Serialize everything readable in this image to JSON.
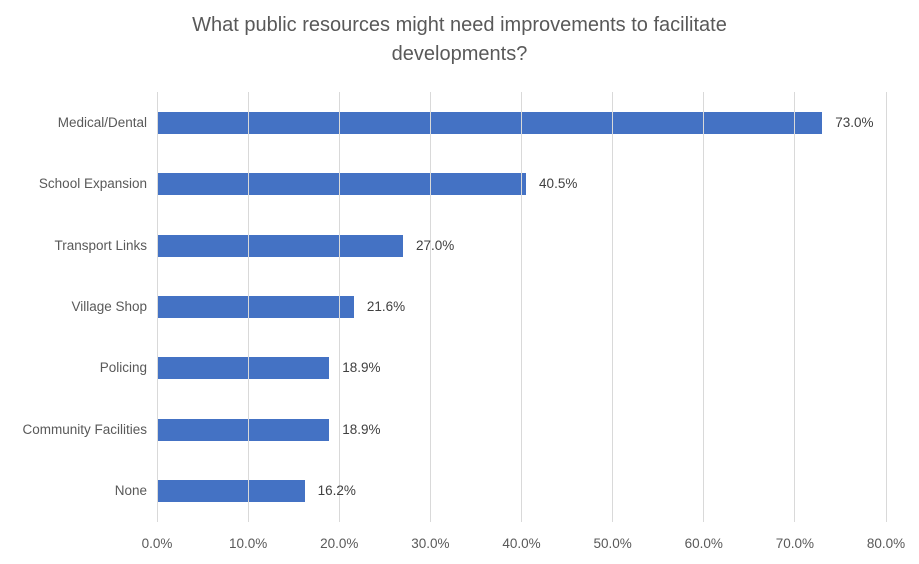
{
  "chart_data": {
    "type": "bar",
    "orientation": "horizontal",
    "title": "What public resources might need improvements to facilitate developments?",
    "categories": [
      "Medical/Dental",
      "School Expansion",
      "Transport Links",
      "Village Shop",
      "Policing",
      "Community Facilities",
      "None"
    ],
    "values": [
      73.0,
      40.5,
      27.0,
      21.6,
      18.9,
      18.9,
      16.2
    ],
    "data_labels": [
      "73.0%",
      "40.5%",
      "27.0%",
      "21.6%",
      "18.9%",
      "18.9%",
      "16.2%"
    ],
    "x_ticks": [
      "0.0%",
      "10.0%",
      "20.0%",
      "30.0%",
      "40.0%",
      "50.0%",
      "60.0%",
      "70.0%",
      "80.0%"
    ],
    "xlim": [
      0,
      80
    ],
    "xlabel": "",
    "ylabel": "",
    "grid": "vertical",
    "legend": "none",
    "colors": {
      "bar": "#4472C4",
      "title_text": "#595959",
      "axis_text": "#595959",
      "data_label_text": "#404040",
      "gridline": "#D9D9D9",
      "background": "#FFFFFF"
    }
  }
}
